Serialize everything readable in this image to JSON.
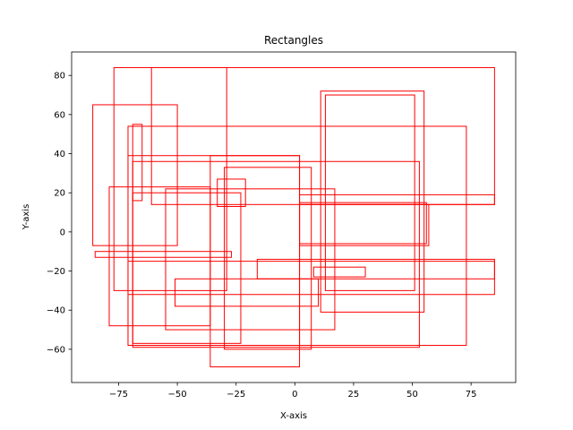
{
  "chart_data": {
    "type": "rectangles",
    "title": "Rectangles",
    "xlabel": "X-axis",
    "ylabel": "Y-axis",
    "xlim": [
      -95,
      94
    ],
    "ylim": [
      -77,
      92
    ],
    "xticks": [
      -75,
      -50,
      -25,
      0,
      25,
      50,
      75
    ],
    "yticks": [
      -60,
      -40,
      -20,
      0,
      20,
      40,
      60,
      80
    ],
    "xtick_labels": [
      "−75",
      "−50",
      "−25",
      "0",
      "25",
      "50",
      "75"
    ],
    "ytick_labels": [
      "−60",
      "−40",
      "−20",
      "0",
      "20",
      "40",
      "60",
      "80"
    ],
    "grid": false,
    "color": "#ff0000",
    "rectangles": [
      {
        "x0": -77,
        "y0": -30,
        "x1": -29,
        "y1": 84
      },
      {
        "x0": -61,
        "y0": 14,
        "x1": 85,
        "y1": 84
      },
      {
        "x0": 11,
        "y0": -41,
        "x1": 55,
        "y1": 72
      },
      {
        "x0": 13,
        "y0": -30,
        "x1": 51,
        "y1": 70
      },
      {
        "x0": -86,
        "y0": -7,
        "x1": -50,
        "y1": 65
      },
      {
        "x0": -71,
        "y0": -58,
        "x1": 73,
        "y1": 54
      },
      {
        "x0": -69,
        "y0": 16,
        "x1": -65,
        "y1": 55
      },
      {
        "x0": -71,
        "y0": -58,
        "x1": 2,
        "y1": 39
      },
      {
        "x0": -69,
        "y0": -59,
        "x1": 53,
        "y1": 36
      },
      {
        "x0": -79,
        "y0": -48,
        "x1": -36,
        "y1": 23
      },
      {
        "x0": -36,
        "y0": -69,
        "x1": 2,
        "y1": 39
      },
      {
        "x0": -55,
        "y0": -50,
        "x1": 17,
        "y1": 22
      },
      {
        "x0": -30,
        "y0": -60,
        "x1": 7,
        "y1": 33
      },
      {
        "x0": -33,
        "y0": 13,
        "x1": -21,
        "y1": 27
      },
      {
        "x0": -69,
        "y0": -57,
        "x1": -23,
        "y1": 20
      },
      {
        "x0": 2,
        "y0": -6,
        "x1": 56,
        "y1": 15
      },
      {
        "x0": 2,
        "y0": -7,
        "x1": 57,
        "y1": 14
      },
      {
        "x0": 2,
        "y0": 14,
        "x1": 85,
        "y1": 19
      },
      {
        "x0": -16,
        "y0": -24,
        "x1": 85,
        "y1": -14
      },
      {
        "x0": -85,
        "y0": -13,
        "x1": -27,
        "y1": -10
      },
      {
        "x0": 8,
        "y0": -23,
        "x1": 30,
        "y1": -18
      },
      {
        "x0": -51,
        "y0": -38,
        "x1": 10,
        "y1": -24
      },
      {
        "x0": -71,
        "y0": -32,
        "x1": 85,
        "y1": -15
      }
    ]
  }
}
